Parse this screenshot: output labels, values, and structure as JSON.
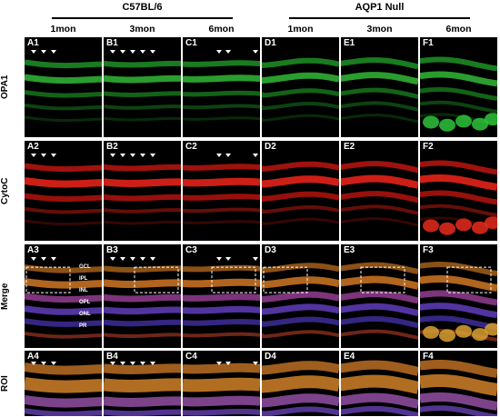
{
  "groups": [
    {
      "name": "C57BL/6",
      "columns": [
        "1mon",
        "3mon",
        "6mon"
      ]
    },
    {
      "name": "AQP1 Null",
      "columns": [
        "1mon",
        "3mon",
        "6mon"
      ]
    }
  ],
  "rows": [
    {
      "label": "OPA1",
      "key": "opa1",
      "color": "#19c42a"
    },
    {
      "label": "CytoC",
      "key": "cytoc",
      "color": "#e8170f"
    },
    {
      "label": "Merge",
      "key": "merge",
      "color": "#c46a1e"
    },
    {
      "label": "ROI",
      "key": "roi",
      "color": "#c87a2a"
    }
  ],
  "panel_labels": [
    [
      "A1",
      "B1",
      "C1",
      "D1",
      "E1",
      "F1"
    ],
    [
      "A2",
      "B2",
      "C2",
      "D2",
      "E2",
      "F2"
    ],
    [
      "A3",
      "B3",
      "C3",
      "D3",
      "E3",
      "F3"
    ],
    [
      "A4",
      "B4",
      "C4",
      "D4",
      "E4",
      "F4"
    ]
  ],
  "layer_labels": [
    "GCL",
    "IPL",
    "INL",
    "OPL",
    "ONL",
    "PR"
  ]
}
